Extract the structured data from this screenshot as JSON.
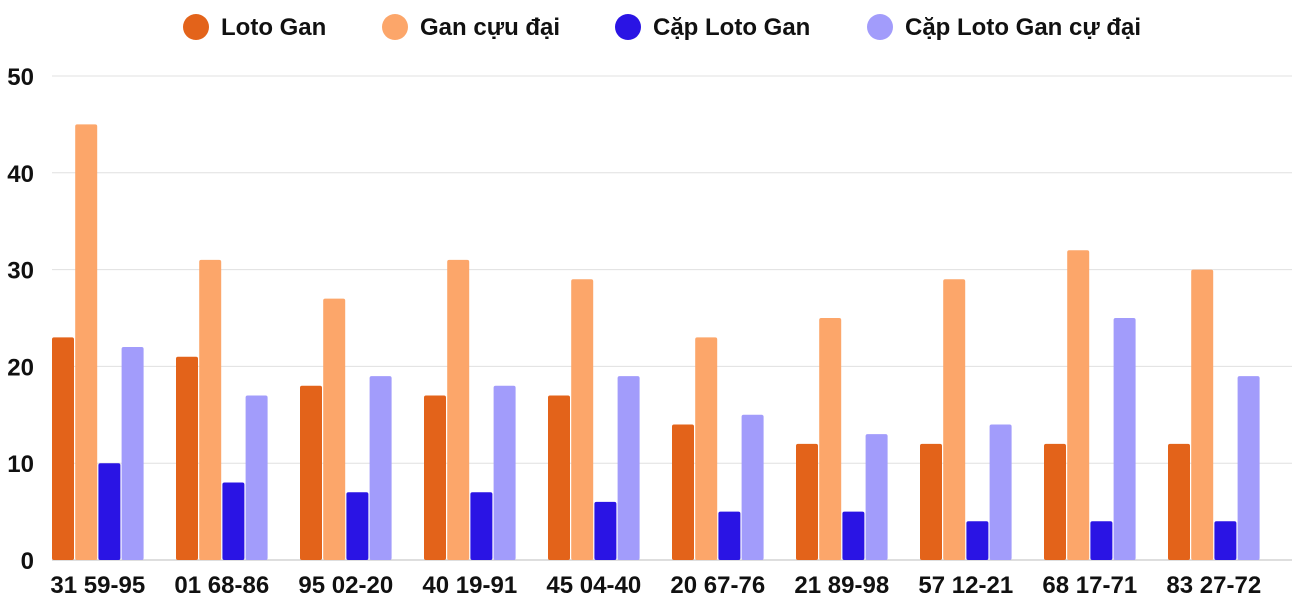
{
  "chart_data": {
    "type": "bar",
    "categories": [
      "31 59-95",
      "01 68-86",
      "95 02-20",
      "40 19-91",
      "45 04-40",
      "20 67-76",
      "21 89-98",
      "57 12-21",
      "68 17-71",
      "83 27-72"
    ],
    "series": [
      {
        "name": "Loto Gan",
        "color": "#e3631a",
        "values": [
          23,
          21,
          18,
          17,
          17,
          14,
          12,
          12,
          12,
          12
        ]
      },
      {
        "name": "Gan cựu đại",
        "color": "#fca66a",
        "values": [
          45,
          31,
          27,
          31,
          29,
          23,
          25,
          29,
          32,
          30
        ]
      },
      {
        "name": "Cặp Loto Gan",
        "color": "#2a14e4",
        "values": [
          10,
          8,
          7,
          7,
          6,
          5,
          5,
          4,
          4,
          4
        ]
      },
      {
        "name": "Cặp Loto Gan cự đại",
        "color": "#a29cfb",
        "values": [
          22,
          17,
          19,
          18,
          19,
          15,
          13,
          14,
          25,
          19
        ]
      }
    ],
    "yticks": [
      0,
      10,
      20,
      30,
      40,
      50
    ],
    "ylim": [
      0,
      50
    ],
    "grid": true,
    "legend": "top-center",
    "title": "",
    "xlabel": "",
    "ylabel": ""
  }
}
